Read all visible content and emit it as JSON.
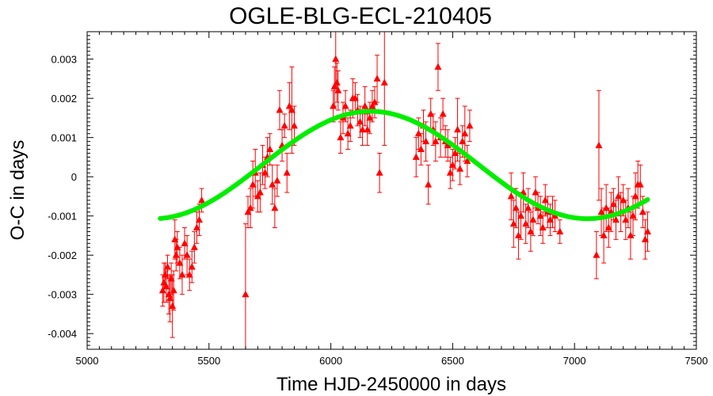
{
  "chart_data": {
    "type": "scatter",
    "title": "OGLE-BLG-ECL-210405",
    "xlabel": "Time HJD-2450000 in days",
    "ylabel": "O-C in days",
    "xlim": [
      5000,
      7500
    ],
    "ylim": [
      -0.0044,
      0.0037
    ],
    "x_ticks": [
      5000,
      5500,
      6000,
      6500,
      7000,
      7500
    ],
    "y_ticks": [
      -0.004,
      -0.003,
      -0.002,
      -0.001,
      0,
      0.001,
      0.002,
      0.003
    ],
    "x_tick_labels": [
      "5000",
      "5500",
      "6000",
      "6500",
      "7000",
      "7500"
    ],
    "y_tick_labels": [
      "-0.004",
      "-0.003",
      "-0.002",
      "-0.001",
      "0",
      "0.001",
      "0.002",
      "0.003"
    ],
    "grid": false,
    "series": [
      {
        "kind": "points-with-error-bars",
        "marker": "triangle",
        "color": "#ff0000",
        "x": [
          5310,
          5315,
          5320,
          5325,
          5330,
          5335,
          5340,
          5345,
          5350,
          5355,
          5360,
          5365,
          5370,
          5380,
          5390,
          5400,
          5410,
          5420,
          5430,
          5440,
          5450,
          5460,
          5470,
          5650,
          5660,
          5670,
          5680,
          5690,
          5700,
          5710,
          5720,
          5730,
          5740,
          5750,
          5760,
          5770,
          5780,
          5790,
          5800,
          5810,
          5820,
          5830,
          5840,
          5850,
          6010,
          6015,
          6020,
          6025,
          6030,
          6040,
          6050,
          6060,
          6070,
          6080,
          6090,
          6100,
          6110,
          6120,
          6130,
          6140,
          6150,
          6160,
          6170,
          6180,
          6190,
          6200,
          6220,
          6350,
          6360,
          6370,
          6380,
          6390,
          6400,
          6410,
          6420,
          6430,
          6440,
          6450,
          6460,
          6470,
          6480,
          6490,
          6500,
          6510,
          6520,
          6530,
          6540,
          6550,
          6560,
          6570,
          6740,
          6750,
          6760,
          6770,
          6780,
          6790,
          6800,
          6810,
          6820,
          6830,
          6840,
          6850,
          6860,
          6870,
          6880,
          6890,
          6900,
          6910,
          6920,
          6940,
          7090,
          7100,
          7110,
          7120,
          7130,
          7140,
          7150,
          7160,
          7170,
          7180,
          7190,
          7200,
          7210,
          7220,
          7230,
          7240,
          7250,
          7260,
          7270,
          7280,
          7290,
          7300
        ],
        "y": [
          -0.0029,
          -0.0027,
          -0.0025,
          -0.0028,
          -0.0023,
          -0.003,
          -0.0031,
          -0.0026,
          -0.0033,
          -0.0029,
          -0.0016,
          -0.002,
          -0.0018,
          -0.0022,
          -0.0025,
          -0.0017,
          -0.002,
          -0.0025,
          -0.0023,
          -0.0018,
          -0.0013,
          -0.0011,
          -0.0006,
          -0.003,
          -0.0009,
          -0.0008,
          -0.0002,
          0.0001,
          -0.0005,
          -0.0004,
          0.0003,
          0.0001,
          0.0005,
          0.0007,
          -0.0002,
          -0.0008,
          -0.0001,
          0.0017,
          0.0008,
          0.0013,
          0.0001,
          0.0018,
          0.0017,
          0.0013,
          0.0018,
          0.0023,
          0.003,
          0.0024,
          0.0022,
          0.001,
          0.0015,
          0.0018,
          0.0011,
          0.0013,
          0.002,
          0.002,
          0.0017,
          0.0014,
          0.0012,
          0.0018,
          0.0012,
          0.0015,
          0.0018,
          0.0019,
          0.0025,
          0.0001,
          0.0024,
          0.0005,
          0.0011,
          0.0007,
          0.0013,
          0.0009,
          -0.0002,
          0.0016,
          0.0012,
          0.0009,
          0.0028,
          0.001,
          0.0016,
          0.0009,
          0.0008,
          0.0001,
          0.0003,
          0.0006,
          0.0012,
          0.0002,
          0.0009,
          0.0011,
          0.0004,
          0.0013,
          -0.0005,
          -0.0012,
          -0.0008,
          -0.0015,
          -0.001,
          -0.0004,
          -0.0012,
          -0.0008,
          -0.0014,
          -0.0011,
          -0.0004,
          -0.0008,
          -0.001,
          -0.0013,
          -0.0006,
          -0.0009,
          -0.0011,
          -0.0009,
          -0.001,
          -0.0014,
          -0.002,
          0.0008,
          -0.0009,
          -0.0015,
          -0.0008,
          -0.0013,
          -0.0009,
          -0.0007,
          -0.0011,
          -0.0005,
          -0.0009,
          -0.0006,
          -0.0011,
          -0.0008,
          -0.0015,
          -0.001,
          -0.0005,
          -0.0002,
          -0.0002,
          -0.0009,
          -0.0016,
          -0.0014
        ],
        "err": [
          0.0004,
          0.0005,
          0.0003,
          0.0004,
          0.0003,
          0.0005,
          0.0006,
          0.0004,
          0.0008,
          0.0005,
          0.0005,
          0.0004,
          0.0004,
          0.0004,
          0.0005,
          0.0004,
          0.0005,
          0.0004,
          0.0004,
          0.0004,
          0.0004,
          0.0004,
          0.0003,
          0.0018,
          0.0004,
          0.0005,
          0.0006,
          0.0006,
          0.0004,
          0.0005,
          0.0005,
          0.0004,
          0.0005,
          0.0004,
          0.0005,
          0.0005,
          0.0004,
          0.0005,
          0.0004,
          0.0003,
          0.0005,
          0.0006,
          0.0011,
          0.0005,
          0.0004,
          0.0005,
          0.0007,
          0.0005,
          0.0005,
          0.0004,
          0.0004,
          0.0004,
          0.0004,
          0.0004,
          0.0005,
          0.0004,
          0.0004,
          0.0004,
          0.0004,
          0.0005,
          0.0004,
          0.0004,
          0.0004,
          0.0004,
          0.0006,
          0.0005,
          0.0016,
          0.0005,
          0.0004,
          0.0004,
          0.0004,
          0.0005,
          0.0005,
          0.0004,
          0.0004,
          0.0005,
          0.0006,
          0.0005,
          0.0004,
          0.0004,
          0.0004,
          0.0004,
          0.0004,
          0.0004,
          0.0008,
          0.0004,
          0.0004,
          0.0007,
          0.0004,
          0.0004,
          0.0006,
          0.0006,
          0.0005,
          0.0006,
          0.0006,
          0.0005,
          0.0005,
          0.0005,
          0.0005,
          0.0004,
          0.0004,
          0.0004,
          0.0005,
          0.0004,
          0.0004,
          0.0004,
          0.0004,
          0.0004,
          0.0004,
          0.0003,
          0.0006,
          0.0014,
          0.0006,
          0.0007,
          0.0006,
          0.0005,
          0.0005,
          0.0004,
          0.0005,
          0.0005,
          0.0005,
          0.0004,
          0.0005,
          0.0005,
          0.0006,
          0.0005,
          0.0006,
          0.0006,
          0.0005,
          0.0004,
          0.0005,
          0.0005
        ]
      },
      {
        "kind": "fit-curve",
        "color": "#00ee00",
        "x_range": [
          5300,
          7300
        ],
        "model": "sinusoid",
        "offset": 0.0003,
        "amplitude": 0.00137,
        "period": 1780,
        "phase_x": 5718
      }
    ]
  }
}
